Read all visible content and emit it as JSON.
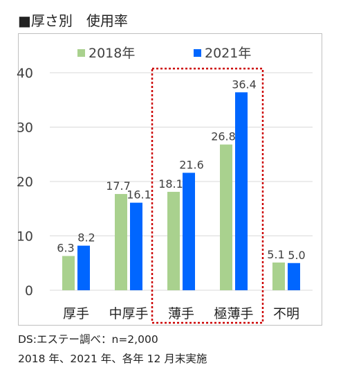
{
  "header": {
    "title": "■厚さ別　使用率"
  },
  "footer": {
    "source": "DS:エステー調べ：n=2,000",
    "note": "2018 年、2021 年、各年 12 月末実施"
  },
  "colors": {
    "series_2018": "#a9d18e",
    "series_2021": "#0066ff",
    "highlight": "#cc0000",
    "grid": "#d9d9d9"
  },
  "chart_data": {
    "type": "bar",
    "categories": [
      "厚手",
      "中厚手",
      "薄手",
      "極薄手",
      "不明"
    ],
    "series": [
      {
        "name": "2018年",
        "values": [
          6.3,
          17.7,
          18.1,
          26.8,
          5.1
        ],
        "labels": [
          "6.3",
          "17.7",
          "18.1",
          "26.8",
          "5.1"
        ]
      },
      {
        "name": "2021年",
        "values": [
          8.2,
          16.1,
          21.6,
          36.4,
          5.0
        ],
        "labels": [
          "8.2",
          "16.1",
          "21.6",
          "36.4",
          "5.0"
        ]
      }
    ],
    "ylim": [
      0,
      40
    ],
    "yticks": [
      "0",
      "10",
      "20",
      "30",
      "40"
    ],
    "grid": true,
    "legend": "top",
    "highlight_categories": [
      "薄手",
      "極薄手"
    ]
  }
}
